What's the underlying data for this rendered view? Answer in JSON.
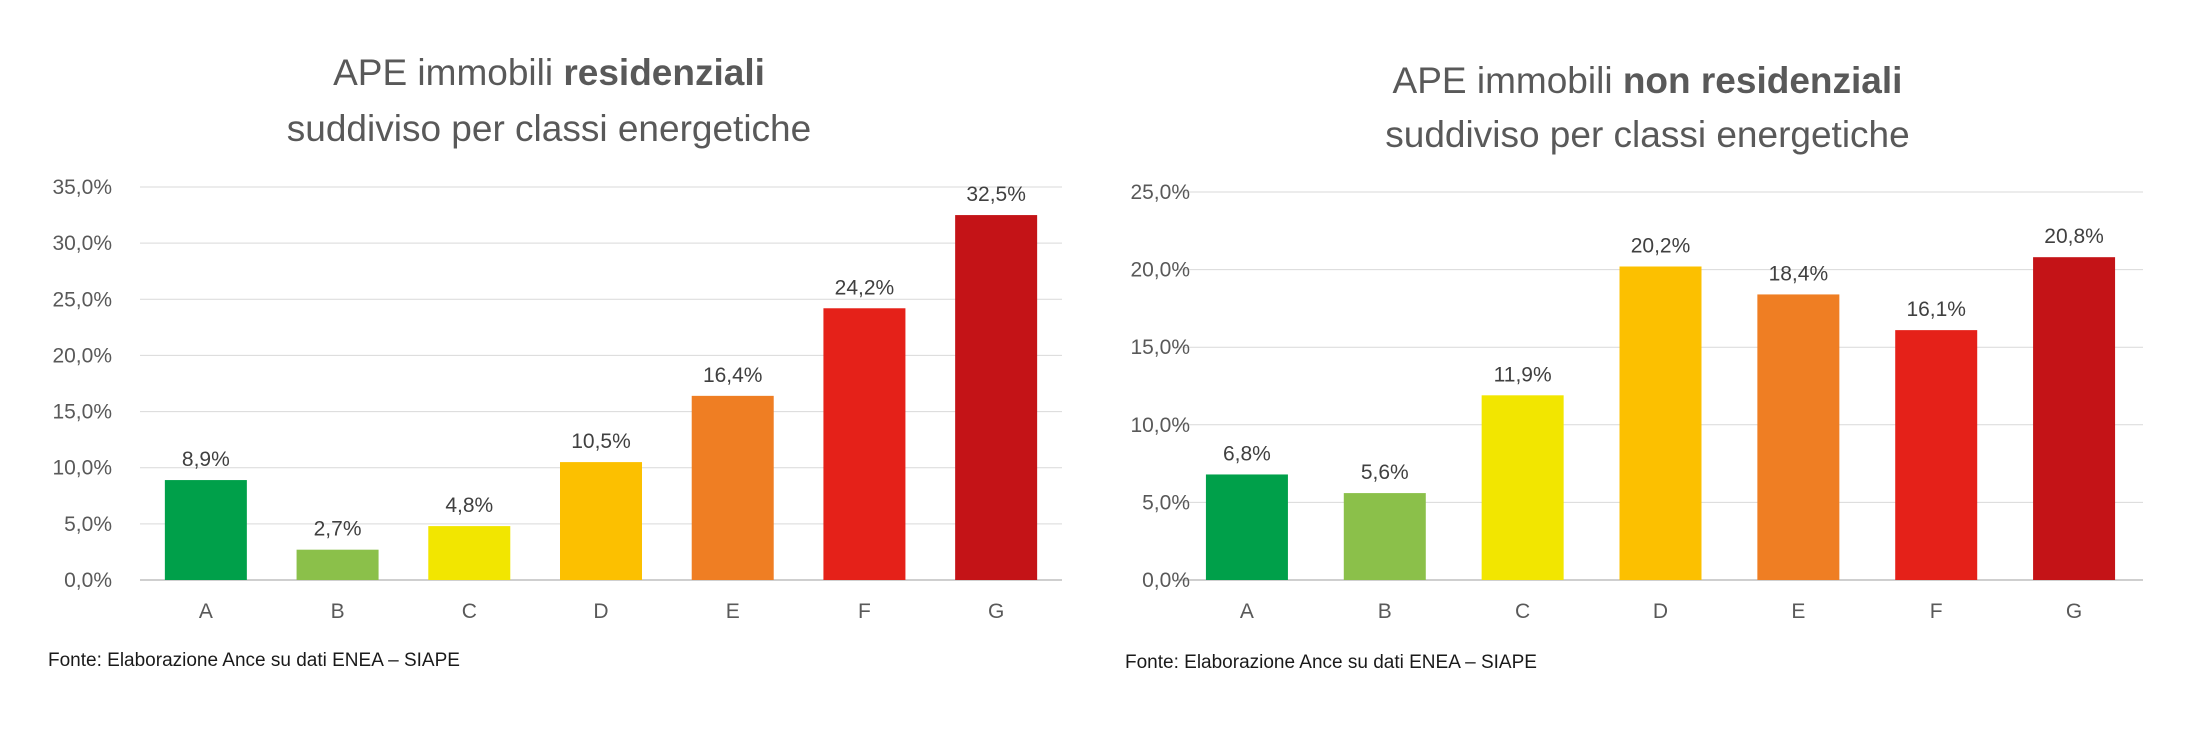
{
  "chart_data": [
    {
      "type": "bar",
      "title_part1": "APE immobili ",
      "title_bold": "residenziali",
      "subtitle": "suddiviso per classi energetiche",
      "categories": [
        "A",
        "B",
        "C",
        "D",
        "E",
        "F",
        "G"
      ],
      "values": [
        8.9,
        2.7,
        4.8,
        10.5,
        16.4,
        24.2,
        32.5
      ],
      "value_labels": [
        "8,9%",
        "2,7%",
        "4,8%",
        "10,5%",
        "16,4%",
        "24,2%",
        "32,5%"
      ],
      "colors": [
        "#00a04a",
        "#8bc04a",
        "#f2e600",
        "#fcc000",
        "#ef7e23",
        "#e52119",
        "#c41317"
      ],
      "ylim": [
        0,
        35
      ],
      "yticks": [
        0,
        5,
        10,
        15,
        20,
        25,
        30,
        35
      ],
      "ytick_labels": [
        "0,0%",
        "5,0%",
        "10,0%",
        "15,0%",
        "20,0%",
        "25,0%",
        "30,0%",
        "35,0%"
      ],
      "xlabel": "",
      "ylabel": "",
      "grid": true,
      "source": "Fonte:  Elaborazione Ance su dati ENEA – SIAPE"
    },
    {
      "type": "bar",
      "title_part1": "APE immobili ",
      "title_bold": "non residenziali",
      "subtitle": "suddiviso per classi energetiche",
      "categories": [
        "A",
        "B",
        "C",
        "D",
        "E",
        "F",
        "G"
      ],
      "values": [
        6.8,
        5.6,
        11.9,
        20.2,
        18.4,
        16.1,
        20.8
      ],
      "value_labels": [
        "6,8%",
        "5,6%",
        "11,9%",
        "20,2%",
        "18,4%",
        "16,1%",
        "20,8%"
      ],
      "colors": [
        "#00a04a",
        "#8bc04a",
        "#f2e600",
        "#fcc000",
        "#ef7e23",
        "#e52119",
        "#c41317"
      ],
      "ylim": [
        0,
        25
      ],
      "yticks": [
        0,
        5,
        10,
        15,
        20,
        25
      ],
      "ytick_labels": [
        "0,0%",
        "5,0%",
        "10,0%",
        "15,0%",
        "20,0%",
        "25,0%"
      ],
      "xlabel": "",
      "ylabel": "",
      "grid": true,
      "source": "Fonte:  Elaborazione Ance su dati ENEA – SIAPE"
    }
  ]
}
